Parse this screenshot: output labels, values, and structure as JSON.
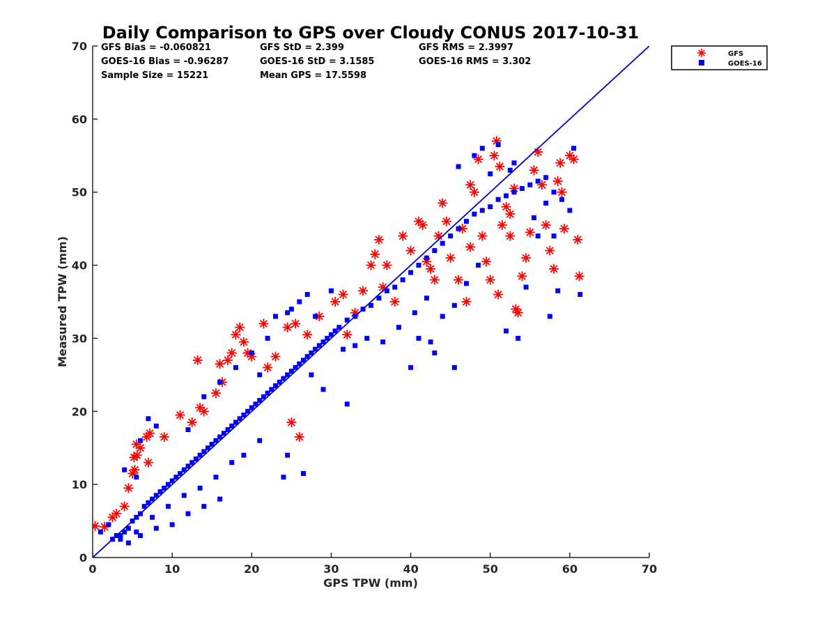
{
  "chart_data": {
    "type": "scatter",
    "title": "Daily Comparison to GPS over Cloudy CONUS 2017-10-31",
    "xlabel": "GPS TPW (mm)",
    "ylabel": "Measured TPW (mm)",
    "xlim": [
      0,
      70
    ],
    "ylim": [
      0,
      70
    ],
    "xticks": [
      "0",
      "10",
      "20",
      "30",
      "40",
      "50",
      "60",
      "70"
    ],
    "yticks": [
      "0",
      "10",
      "20",
      "30",
      "40",
      "50",
      "60",
      "70"
    ],
    "grid": false,
    "legend_placement": "outside-top-right",
    "reference_line": {
      "x": [
        0,
        70
      ],
      "y": [
        0,
        70
      ],
      "color": "#0000cc"
    },
    "stats": [
      {
        "text": "GFS Bias = -0.060821"
      },
      {
        "text": "GFS StD = 2.399"
      },
      {
        "text": "GFS RMS = 2.3997"
      },
      {
        "text": "GOES-16 Bias = -0.96287"
      },
      {
        "text": "GOES-16 StD = 3.1585"
      },
      {
        "text": "GOES-16 RMS = 3.302"
      },
      {
        "text": "Sample Size = 15221"
      },
      {
        "text": "Mean GPS = 17.5598"
      }
    ],
    "series": [
      {
        "name": "GFS",
        "marker": "asterisk",
        "color": "#ff0000",
        "points": [
          [
            0.3,
            4.3
          ],
          [
            1.5,
            4.2
          ],
          [
            2.5,
            5.5
          ],
          [
            3.0,
            6.0
          ],
          [
            4.0,
            7.0
          ],
          [
            4.5,
            9.5
          ],
          [
            5.0,
            11.5
          ],
          [
            5.3,
            12.0
          ],
          [
            5.5,
            15.5
          ],
          [
            5.6,
            14.0
          ],
          [
            5.2,
            13.7
          ],
          [
            6.0,
            15.0
          ],
          [
            6.8,
            16.5
          ],
          [
            7.2,
            17.0
          ],
          [
            7.0,
            13.0
          ],
          [
            9.0,
            16.5
          ],
          [
            11.0,
            19.5
          ],
          [
            12.5,
            18.5
          ],
          [
            13.5,
            20.5
          ],
          [
            13.2,
            27.0
          ],
          [
            14.0,
            20.0
          ],
          [
            15.5,
            22.5
          ],
          [
            16.0,
            26.5
          ],
          [
            16.3,
            24.0
          ],
          [
            17.0,
            27.0
          ],
          [
            17.5,
            28.0
          ],
          [
            18.0,
            30.5
          ],
          [
            18.5,
            31.5
          ],
          [
            19.0,
            29.5
          ],
          [
            19.5,
            28.0
          ],
          [
            20.0,
            27.5
          ],
          [
            21.5,
            32.0
          ],
          [
            22.0,
            26.0
          ],
          [
            23.0,
            27.5
          ],
          [
            24.5,
            31.5
          ],
          [
            25.5,
            32.0
          ],
          [
            26.0,
            16.5
          ],
          [
            25.0,
            18.5
          ],
          [
            27.0,
            30.5
          ],
          [
            28.5,
            33.0
          ],
          [
            30.5,
            35.0
          ],
          [
            31.5,
            36.0
          ],
          [
            32.0,
            30.5
          ],
          [
            33.0,
            33.5
          ],
          [
            34.0,
            36.5
          ],
          [
            35.0,
            40.0
          ],
          [
            35.5,
            41.5
          ],
          [
            36.0,
            43.5
          ],
          [
            36.5,
            37.0
          ],
          [
            37.0,
            40.0
          ],
          [
            38.0,
            35.0
          ],
          [
            39.0,
            44.0
          ],
          [
            40.0,
            42.0
          ],
          [
            41.0,
            46.0
          ],
          [
            41.5,
            45.5
          ],
          [
            42.0,
            40.5
          ],
          [
            42.5,
            39.5
          ],
          [
            43.0,
            38.0
          ],
          [
            44.0,
            48.5
          ],
          [
            44.5,
            46.0
          ],
          [
            45.0,
            41.0
          ],
          [
            46.0,
            38.0
          ],
          [
            46.5,
            45.0
          ],
          [
            47.0,
            35.0
          ],
          [
            47.5,
            51.0
          ],
          [
            48.0,
            50.0
          ],
          [
            48.5,
            54.5
          ],
          [
            49.0,
            44.0
          ],
          [
            49.5,
            40.5
          ],
          [
            50.0,
            38.0
          ],
          [
            50.5,
            55.0
          ],
          [
            50.8,
            57.0
          ],
          [
            51.2,
            53.5
          ],
          [
            51.0,
            36.0
          ],
          [
            51.5,
            45.5
          ],
          [
            52.0,
            48.0
          ],
          [
            52.5,
            44.0
          ],
          [
            53.0,
            50.5
          ],
          [
            53.5,
            33.5
          ],
          [
            53.2,
            34.0
          ],
          [
            54.0,
            38.5
          ],
          [
            54.5,
            41.0
          ],
          [
            55.0,
            44.5
          ],
          [
            55.5,
            53.0
          ],
          [
            56.0,
            55.5
          ],
          [
            56.5,
            51.0
          ],
          [
            57.0,
            45.5
          ],
          [
            57.5,
            42.0
          ],
          [
            58.0,
            39.5
          ],
          [
            58.5,
            51.5
          ],
          [
            59.0,
            50.0
          ],
          [
            59.3,
            45.0
          ],
          [
            60.0,
            55.0
          ],
          [
            60.5,
            54.5
          ],
          [
            61.0,
            43.5
          ],
          [
            61.2,
            38.5
          ],
          [
            58.8,
            54.0
          ],
          [
            43.5,
            44.0
          ],
          [
            47.5,
            42.5
          ],
          [
            52.5,
            47.0
          ]
        ]
      },
      {
        "name": "GOES-16",
        "marker": "square",
        "color": "#0000ff",
        "points": [
          [
            2.5,
            2.5
          ],
          [
            3.0,
            3.0
          ],
          [
            3.5,
            3.0
          ],
          [
            4.0,
            3.5
          ],
          [
            4.5,
            4.0
          ],
          [
            5.0,
            5.0
          ],
          [
            5.5,
            5.5
          ],
          [
            6.0,
            6.0
          ],
          [
            6.5,
            7.0
          ],
          [
            7.0,
            7.5
          ],
          [
            7.5,
            8.0
          ],
          [
            8.0,
            8.5
          ],
          [
            8.5,
            9.0
          ],
          [
            9.0,
            9.5
          ],
          [
            9.5,
            10.0
          ],
          [
            10.0,
            10.5
          ],
          [
            10.5,
            11.0
          ],
          [
            11.0,
            11.5
          ],
          [
            11.5,
            12.0
          ],
          [
            12.0,
            12.5
          ],
          [
            12.5,
            13.0
          ],
          [
            13.0,
            13.5
          ],
          [
            13.5,
            14.0
          ],
          [
            14.0,
            14.5
          ],
          [
            14.5,
            15.0
          ],
          [
            15.0,
            15.5
          ],
          [
            15.5,
            16.0
          ],
          [
            16.0,
            16.5
          ],
          [
            16.5,
            17.0
          ],
          [
            17.0,
            17.5
          ],
          [
            17.5,
            18.0
          ],
          [
            18.0,
            18.5
          ],
          [
            18.5,
            19.0
          ],
          [
            19.0,
            19.5
          ],
          [
            19.5,
            20.0
          ],
          [
            20.0,
            20.5
          ],
          [
            20.5,
            21.0
          ],
          [
            21.0,
            21.5
          ],
          [
            21.5,
            22.0
          ],
          [
            22.0,
            22.5
          ],
          [
            22.5,
            23.0
          ],
          [
            23.0,
            23.5
          ],
          [
            23.5,
            24.0
          ],
          [
            24.0,
            24.5
          ],
          [
            24.5,
            25.0
          ],
          [
            25.0,
            25.5
          ],
          [
            25.5,
            26.0
          ],
          [
            26.0,
            26.5
          ],
          [
            26.5,
            27.0
          ],
          [
            27.0,
            27.5
          ],
          [
            27.5,
            28.0
          ],
          [
            28.0,
            28.5
          ],
          [
            28.5,
            29.0
          ],
          [
            29.0,
            29.5
          ],
          [
            29.5,
            30.0
          ],
          [
            30.0,
            30.5
          ],
          [
            30.5,
            31.0
          ],
          [
            31.0,
            31.5
          ],
          [
            32.0,
            32.5
          ],
          [
            33.0,
            33.0
          ],
          [
            34.0,
            34.0
          ],
          [
            35.0,
            34.5
          ],
          [
            36.0,
            35.5
          ],
          [
            37.0,
            36.5
          ],
          [
            38.0,
            37.0
          ],
          [
            39.0,
            38.0
          ],
          [
            40.0,
            39.0
          ],
          [
            41.0,
            40.0
          ],
          [
            42.0,
            41.0
          ],
          [
            43.0,
            42.0
          ],
          [
            44.0,
            43.0
          ],
          [
            45.0,
            44.0
          ],
          [
            46.0,
            45.0
          ],
          [
            47.0,
            46.0
          ],
          [
            48.0,
            47.0
          ],
          [
            49.0,
            47.5
          ],
          [
            50.0,
            48.0
          ],
          [
            51.0,
            49.0
          ],
          [
            52.0,
            49.5
          ],
          [
            53.0,
            50.0
          ],
          [
            54.0,
            50.5
          ],
          [
            55.0,
            51.0
          ],
          [
            56.0,
            51.5
          ],
          [
            57.0,
            52.0
          ],
          [
            58.0,
            50.0
          ],
          [
            59.0,
            49.0
          ],
          [
            60.0,
            47.5
          ],
          [
            60.5,
            56.0
          ],
          [
            61.3,
            36.0
          ],
          [
            58.5,
            36.5
          ],
          [
            57.5,
            33.0
          ],
          [
            54.5,
            37.0
          ],
          [
            52.0,
            31.0
          ],
          [
            53.5,
            30.0
          ],
          [
            45.5,
            26.0
          ],
          [
            43.0,
            28.0
          ],
          [
            42.5,
            29.5
          ],
          [
            41.0,
            30.0
          ],
          [
            40.0,
            26.0
          ],
          [
            30.0,
            36.5
          ],
          [
            28.0,
            33.0
          ],
          [
            27.5,
            25.0
          ],
          [
            32.0,
            21.0
          ],
          [
            29.0,
            23.0
          ],
          [
            26.5,
            11.5
          ],
          [
            24.0,
            11.0
          ],
          [
            24.5,
            14.0
          ],
          [
            21.0,
            16.0
          ],
          [
            16.0,
            8.0
          ],
          [
            14.0,
            7.0
          ],
          [
            12.0,
            6.0
          ],
          [
            10.0,
            4.5
          ],
          [
            8.0,
            4.0
          ],
          [
            6.0,
            3.0
          ],
          [
            4.5,
            2.0
          ],
          [
            7.0,
            19.0
          ],
          [
            8.0,
            18.0
          ],
          [
            6.0,
            16.0
          ],
          [
            5.5,
            11.0
          ],
          [
            4.0,
            12.0
          ],
          [
            12.0,
            17.5
          ],
          [
            14.0,
            22.0
          ],
          [
            16.0,
            24.0
          ],
          [
            18.0,
            26.0
          ],
          [
            20.0,
            28.0
          ],
          [
            21.0,
            25.0
          ],
          [
            22.0,
            30.0
          ],
          [
            23.0,
            33.0
          ],
          [
            24.5,
            33.5
          ],
          [
            25.0,
            34.0
          ],
          [
            26.0,
            35.0
          ],
          [
            27.0,
            36.0
          ],
          [
            46.0,
            53.5
          ],
          [
            48.0,
            55.0
          ],
          [
            49.0,
            56.0
          ],
          [
            50.0,
            52.5
          ],
          [
            51.0,
            56.5
          ],
          [
            52.5,
            53.0
          ],
          [
            53.0,
            54.0
          ],
          [
            55.5,
            46.5
          ],
          [
            56.0,
            44.0
          ],
          [
            57.0,
            48.5
          ],
          [
            58.0,
            44.0
          ],
          [
            48.5,
            40.0
          ],
          [
            47.0,
            37.5
          ],
          [
            45.5,
            34.5
          ],
          [
            44.0,
            33.0
          ],
          [
            42.0,
            35.5
          ],
          [
            40.5,
            33.5
          ],
          [
            38.5,
            31.5
          ],
          [
            36.5,
            29.5
          ],
          [
            34.5,
            30.0
          ],
          [
            33.0,
            29.0
          ],
          [
            31.5,
            28.5
          ],
          [
            19.0,
            14.0
          ],
          [
            17.5,
            13.0
          ],
          [
            15.5,
            11.0
          ],
          [
            13.5,
            9.5
          ],
          [
            11.5,
            8.5
          ],
          [
            9.5,
            7.0
          ],
          [
            7.5,
            5.5
          ],
          [
            5.5,
            3.5
          ],
          [
            3.5,
            2.5
          ],
          [
            1.0,
            3.5
          ],
          [
            2.0,
            4.5
          ]
        ]
      }
    ]
  }
}
